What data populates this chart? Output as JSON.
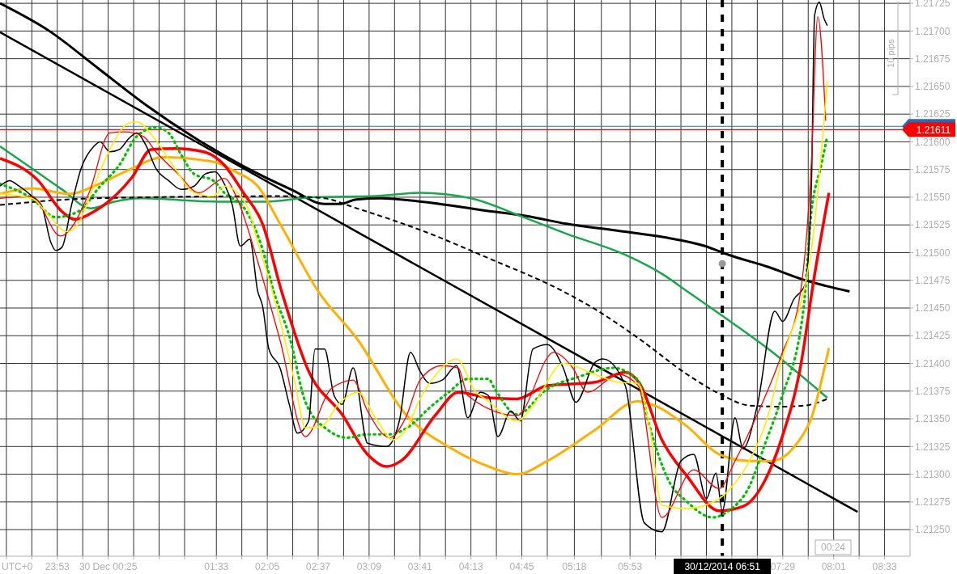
{
  "chart_data": {
    "type": "line",
    "xlim": [
      "2014-12-29T23:17",
      "2014-12-30T08:49"
    ],
    "ylim": [
      1.21226,
      1.21728
    ],
    "xticks": [
      {
        "value": "2014-12-29T23:21",
        "label": null
      },
      {
        "value": "2014-12-29T23:37",
        "label": null
      },
      {
        "value": "2014-12-29T23:53",
        "label": "23:53"
      },
      {
        "value": "2014-12-30T00:09",
        "label": null
      },
      {
        "value": "2014-12-30T00:25",
        "label": "30 Dec 00:25"
      },
      {
        "value": "2014-12-30T00:41",
        "label": null
      },
      {
        "value": "2014-12-30T00:57",
        "label": null
      },
      {
        "value": "2014-12-30T01:13",
        "label": null
      },
      {
        "value": "2014-12-30T01:33",
        "label": "01:33"
      },
      {
        "value": "2014-12-30T01:49",
        "label": null
      },
      {
        "value": "2014-12-30T02:05",
        "label": "02:05"
      },
      {
        "value": "2014-12-30T02:21",
        "label": null
      },
      {
        "value": "2014-12-30T02:37",
        "label": "02:37"
      },
      {
        "value": "2014-12-30T02:53",
        "label": null
      },
      {
        "value": "2014-12-30T03:09",
        "label": "03:09"
      },
      {
        "value": "2014-12-30T03:25",
        "label": null
      },
      {
        "value": "2014-12-30T03:41",
        "label": "03:41"
      },
      {
        "value": "2014-12-30T03:57",
        "label": null
      },
      {
        "value": "2014-12-30T04:13",
        "label": "04:13"
      },
      {
        "value": "2014-12-30T04:29",
        "label": null
      },
      {
        "value": "2014-12-30T04:45",
        "label": "04:45"
      },
      {
        "value": "2014-12-30T05:01",
        "label": null
      },
      {
        "value": "2014-12-30T05:18",
        "label": "05:18"
      },
      {
        "value": "2014-12-30T05:35",
        "label": null
      },
      {
        "value": "2014-12-30T05:53",
        "label": "05:53"
      },
      {
        "value": "2014-12-30T06:09",
        "label": null
      },
      {
        "value": "2014-12-30T06:25",
        "label": null
      },
      {
        "value": "2014-12-30T06:41",
        "label": null
      },
      {
        "value": "2014-12-30T06:57",
        "label": null
      },
      {
        "value": "2014-12-30T07:13",
        "label": null
      },
      {
        "value": "2014-12-30T07:29",
        "label": "07:29"
      },
      {
        "value": "2014-12-30T07:45",
        "label": null
      },
      {
        "value": "2014-12-30T08:01",
        "label": "08:01"
      },
      {
        "value": "2014-12-30T08:17",
        "label": null
      },
      {
        "value": "2014-12-30T08:33",
        "label": "08:33"
      }
    ],
    "yticks": [
      {
        "value": 1.2125,
        "label": "1.21250"
      },
      {
        "value": 1.21275,
        "label": "1.21275"
      },
      {
        "value": 1.213,
        "label": "1.21300"
      },
      {
        "value": 1.21325,
        "label": "1.21325"
      },
      {
        "value": 1.2135,
        "label": "1.21350"
      },
      {
        "value": 1.21375,
        "label": "1.21375"
      },
      {
        "value": 1.214,
        "label": "1.21400"
      },
      {
        "value": 1.21425,
        "label": "1.21425"
      },
      {
        "value": 1.2145,
        "label": "1.21450"
      },
      {
        "value": 1.21475,
        "label": "1.21475"
      },
      {
        "value": 1.215,
        "label": "1.21500"
      },
      {
        "value": 1.21525,
        "label": "1.21525"
      },
      {
        "value": 1.2155,
        "label": "1.21550"
      },
      {
        "value": 1.21575,
        "label": "1.21575"
      },
      {
        "value": 1.216,
        "label": "1.21600"
      },
      {
        "value": 1.21625,
        "label": "1.21625"
      },
      {
        "value": 1.2165,
        "label": "1.21650"
      },
      {
        "value": 1.21675,
        "label": "1.21675"
      },
      {
        "value": 1.217,
        "label": "1.21700"
      },
      {
        "value": 1.21725,
        "label": "1.21725"
      }
    ],
    "grid": true,
    "series": [
      {
        "color": "#000000",
        "x": [
          "2014-12-29T23:17",
          "2014-12-30T08:16"
        ],
        "values": [
          1.21699,
          1.21266
        ]
      },
      {
        "color": "#000000",
        "x": [
          "2014-12-29T23:17",
          "2014-12-29T23:48",
          "2014-12-30T00:19",
          "2014-12-30T00:49",
          "2014-12-30T01:19",
          "2014-12-30T01:50",
          "2014-12-30T02:20",
          "2014-12-30T02:41",
          "2014-12-30T02:51",
          "2014-12-30T03:01",
          "2014-12-30T03:16",
          "2014-12-30T03:42",
          "2014-12-30T04:22",
          "2014-12-30T04:48",
          "2014-12-30T05:13",
          "2014-12-30T05:44",
          "2014-12-30T06:14",
          "2014-12-30T06:40",
          "2014-12-30T06:55",
          "2014-12-30T07:20",
          "2014-12-30T07:41",
          "2014-12-30T07:56",
          "2014-12-30T08:11"
        ],
        "values": [
          1.21725,
          1.217,
          1.21666,
          1.21633,
          1.21604,
          1.21578,
          1.21557,
          1.21544,
          1.21544,
          1.21548,
          1.21549,
          1.21546,
          1.21538,
          1.21533,
          1.21526,
          1.2152,
          1.21514,
          1.21506,
          1.21498,
          1.21487,
          1.21476,
          1.2147,
          1.21465
        ]
      },
      {
        "color": "#18a84a",
        "x": [
          "2014-12-29T23:17",
          "2014-12-29T23:37",
          "2014-12-29T23:56",
          "2014-12-30T00:14",
          "2014-12-30T00:29",
          "2014-12-30T00:46",
          "2014-12-30T01:34",
          "2014-12-30T02:04",
          "2014-12-30T02:33",
          "2014-12-30T03:13",
          "2014-12-30T03:41",
          "2014-12-30T04:13",
          "2014-12-30T04:46",
          "2014-12-30T05:13",
          "2014-12-30T05:50",
          "2014-12-30T06:14",
          "2014-12-30T06:29",
          "2014-12-30T06:50",
          "2014-12-30T07:20",
          "2014-12-30T07:57"
        ],
        "values": [
          1.21596,
          1.21576,
          1.21557,
          1.2154,
          1.21546,
          1.21549,
          1.21546,
          1.21546,
          1.2155,
          1.21551,
          1.21554,
          1.21549,
          1.21532,
          1.21517,
          1.21498,
          1.2148,
          1.21465,
          1.21444,
          1.21413,
          1.21369
        ]
      },
      {
        "color": "#000000",
        "line_style": "dashed",
        "x": [
          "2014-12-29T23:17",
          "2014-12-30T00:16",
          "2014-12-30T02:13",
          "2014-12-30T02:41",
          "2014-12-30T02:59",
          "2014-12-30T03:42",
          "2014-12-30T04:24",
          "2014-12-30T05:11",
          "2014-12-30T05:31",
          "2014-12-30T05:59",
          "2014-12-30T06:29",
          "2014-12-30T06:50",
          "2014-12-30T07:08",
          "2014-12-30T07:28",
          "2014-12-30T07:43",
          "2014-12-30T07:57"
        ],
        "values": [
          1.21543,
          1.21549,
          1.21551,
          1.21549,
          1.21541,
          1.2152,
          1.21495,
          1.21465,
          1.21449,
          1.21422,
          1.2139,
          1.21372,
          1.21362,
          1.21361,
          1.21362,
          1.21368
        ]
      },
      {
        "color": "#ffb000",
        "x": [
          "2014-12-29T23:17",
          "2014-12-29T23:37",
          "2014-12-30T00:01",
          "2014-12-30T00:16",
          "2014-12-30T00:40",
          "2014-12-30T00:59",
          "2014-12-30T01:31",
          "2014-12-30T01:45",
          "2014-12-30T01:59",
          "2014-12-30T02:13",
          "2014-12-30T02:37",
          "2014-12-30T03:02",
          "2014-12-30T03:32",
          "2014-12-30T04:01",
          "2014-12-30T04:24",
          "2014-12-30T04:42",
          "2014-12-30T05:01",
          "2014-12-30T05:31",
          "2014-12-30T05:58",
          "2014-12-30T06:10",
          "2014-12-30T06:29",
          "2014-12-30T06:49",
          "2014-12-30T07:08",
          "2014-12-30T07:22",
          "2014-12-30T07:38",
          "2014-12-30T07:47",
          "2014-12-30T07:58"
        ],
        "values": [
          1.21553,
          1.21558,
          1.21553,
          1.2156,
          1.21576,
          1.21586,
          1.21582,
          1.21573,
          1.2156,
          1.21526,
          1.21465,
          1.21421,
          1.21354,
          1.21323,
          1.21307,
          1.213,
          1.21312,
          1.2134,
          1.21366,
          1.21361,
          1.21343,
          1.21318,
          1.21312,
          1.21312,
          1.21328,
          1.21351,
          1.21414
        ]
      },
      {
        "color": "#ff0000",
        "x": [
          "2014-12-29T23:17",
          "2014-12-29T23:41",
          "2014-12-29T23:56",
          "2014-12-30T00:04",
          "2014-12-30T00:16",
          "2014-12-30T00:40",
          "2014-12-30T00:52",
          "2014-12-30T01:07",
          "2014-12-30T01:25",
          "2014-12-30T01:38",
          "2014-12-30T01:50",
          "2014-12-30T02:02",
          "2014-12-30T02:14",
          "2014-12-30T02:31",
          "2014-12-30T02:52",
          "2014-12-30T03:08",
          "2014-12-30T03:20",
          "2014-12-30T03:29",
          "2014-12-30T03:51",
          "2014-12-30T04:05",
          "2014-12-30T04:24",
          "2014-12-30T04:42",
          "2014-12-30T05:01",
          "2014-12-30T05:31",
          "2014-12-30T05:50",
          "2014-12-30T05:59",
          "2014-12-30T06:13",
          "2014-12-30T06:29",
          "2014-12-30T06:49",
          "2014-12-30T07:04",
          "2014-12-30T07:18",
          "2014-12-30T07:28",
          "2014-12-30T07:40",
          "2014-12-30T07:49",
          "2014-12-30T07:58"
        ],
        "values": [
          1.21585,
          1.21565,
          1.21537,
          1.2153,
          1.21537,
          1.21568,
          1.21593,
          1.21594,
          1.21591,
          1.21579,
          1.21554,
          1.21526,
          1.21465,
          1.21393,
          1.21354,
          1.21318,
          1.21307,
          1.21312,
          1.21354,
          1.21374,
          1.21369,
          1.21368,
          1.2138,
          1.21383,
          1.21392,
          1.21382,
          1.21331,
          1.21298,
          1.21267,
          1.21271,
          1.21295,
          1.21331,
          1.21396,
          1.2148,
          1.21554
        ]
      },
      {
        "color": "#00c000",
        "line_style": "dotted",
        "x": [
          "2014-12-29T23:17",
          "2014-12-29T23:37",
          "2014-12-29T23:52",
          "2014-12-30T00:06",
          "2014-12-30T00:20",
          "2014-12-30T00:32",
          "2014-12-30T00:43",
          "2014-12-30T00:55",
          "2014-12-30T01:03",
          "2014-12-30T01:11",
          "2014-12-30T01:19",
          "2014-12-30T01:31",
          "2014-12-30T01:38",
          "2014-12-30T01:52",
          "2014-12-30T02:02",
          "2014-12-30T02:09",
          "2014-12-30T02:19",
          "2014-12-30T02:29",
          "2014-12-30T02:43",
          "2014-12-30T02:55",
          "2014-12-30T03:08",
          "2014-12-30T03:22",
          "2014-12-30T03:34",
          "2014-12-30T03:47",
          "2014-12-30T03:59",
          "2014-12-30T04:11",
          "2014-12-30T04:24",
          "2014-12-30T04:28",
          "2014-12-30T04:42",
          "2014-12-30T05:01",
          "2014-12-30T05:21",
          "2014-12-30T05:42",
          "2014-12-30T05:58",
          "2014-12-30T06:05",
          "2014-12-30T06:17",
          "2014-12-30T06:29",
          "2014-12-30T06:45",
          "2014-12-30T06:55",
          "2014-12-30T07:08",
          "2014-12-30T07:18",
          "2014-12-30T07:28",
          "2014-12-30T07:42",
          "2014-12-30T07:47",
          "2014-12-30T07:53",
          "2014-12-30T07:57"
        ],
        "values": [
          1.21562,
          1.21549,
          1.21532,
          1.21537,
          1.2156,
          1.21579,
          1.21605,
          1.21613,
          1.21608,
          1.21588,
          1.21571,
          1.21565,
          1.21554,
          1.21537,
          1.21503,
          1.21465,
          1.21424,
          1.21365,
          1.2134,
          1.21333,
          1.21336,
          1.21336,
          1.21343,
          1.2136,
          1.21374,
          1.21386,
          1.21386,
          1.21377,
          1.21354,
          1.21377,
          1.21388,
          1.21396,
          1.21385,
          1.21345,
          1.21295,
          1.21275,
          1.21261,
          1.21267,
          1.21289,
          1.21328,
          1.21368,
          1.21449,
          1.21537,
          1.21578,
          1.21605
        ]
      },
      {
        "color": "#000000",
        "x": [
          "2014-12-29T23:17",
          "2014-12-29T23:23",
          "2014-12-29T23:29",
          "2014-12-29T23:37",
          "2014-12-29T23:43",
          "2014-12-29T23:49",
          "2014-12-29T23:52",
          "2014-12-29T23:56",
          "2014-12-30T00:02",
          "2014-12-30T00:08",
          "2014-12-30T00:16",
          "2014-12-30T00:20",
          "2014-12-30T00:26",
          "2014-12-30T00:32",
          "2014-12-30T00:38",
          "2014-12-30T00:43",
          "2014-12-30T00:49",
          "2014-12-30T00:55",
          "2014-12-30T01:03",
          "2014-12-30T01:11",
          "2014-12-30T01:19",
          "2014-12-30T01:26",
          "2014-12-30T01:32",
          "2014-12-30T01:38",
          "2014-12-30T01:43",
          "2014-12-30T01:48",
          "2014-12-30T01:54",
          "2014-12-30T01:59",
          "2014-12-30T02:02",
          "2014-12-30T02:06",
          "2014-12-30T02:13",
          "2014-12-30T02:19",
          "2014-12-30T02:24",
          "2014-12-30T02:31",
          "2014-12-30T02:35",
          "2014-12-30T02:41",
          "2014-12-30T02:47",
          "2014-12-30T02:52",
          "2014-12-30T02:59",
          "2014-12-30T03:08",
          "2014-12-30T03:20",
          "2014-12-30T03:28",
          "2014-12-30T03:35",
          "2014-12-30T03:41",
          "2014-12-30T03:47",
          "2014-12-30T03:55",
          "2014-12-30T04:04",
          "2014-12-30T04:11",
          "2014-12-30T04:19",
          "2014-12-30T04:24",
          "2014-12-30T04:30",
          "2014-12-30T04:38",
          "2014-12-30T04:44",
          "2014-12-30T04:52",
          "2014-12-30T05:01",
          "2014-12-30T05:11",
          "2014-12-30T05:19",
          "2014-12-30T05:31",
          "2014-12-30T05:36",
          "2014-12-30T05:50",
          "2014-12-30T06:02",
          "2014-12-30T06:13",
          "2014-12-30T06:25",
          "2014-12-30T06:33",
          "2014-12-30T06:41",
          "2014-12-30T06:47",
          "2014-12-30T06:51",
          "2014-12-30T06:59",
          "2014-12-30T07:04",
          "2014-12-30T07:13",
          "2014-12-30T07:24",
          "2014-12-30T07:29",
          "2014-12-30T07:36",
          "2014-12-30T07:43",
          "2014-12-30T07:47",
          "2014-12-30T07:49",
          "2014-12-30T07:52",
          "2014-12-30T07:55",
          "2014-12-30T07:57"
        ],
        "values": [
          1.2156,
          1.21565,
          1.2156,
          1.21551,
          1.21543,
          1.21509,
          1.21502,
          1.21505,
          1.21543,
          1.21576,
          1.21596,
          1.216,
          1.21591,
          1.21593,
          1.21603,
          1.21608,
          1.21596,
          1.21576,
          1.21565,
          1.21557,
          1.2156,
          1.21571,
          1.21573,
          1.21562,
          1.21543,
          1.21506,
          1.21512,
          1.21465,
          1.21452,
          1.21413,
          1.21396,
          1.21362,
          1.21337,
          1.21348,
          1.21413,
          1.21413,
          1.21371,
          1.21363,
          1.21396,
          1.21328,
          1.21325,
          1.21348,
          1.2141,
          1.21393,
          1.21382,
          1.21385,
          1.21398,
          1.21351,
          1.21374,
          1.21371,
          1.21334,
          1.21357,
          1.21348,
          1.21413,
          1.21417,
          1.21396,
          1.21365,
          1.21401,
          1.21404,
          1.2138,
          1.21256,
          1.21248,
          1.21312,
          1.21318,
          1.21278,
          1.21301,
          1.21267,
          1.21351,
          1.21323,
          1.21362,
          1.21447,
          1.21438,
          1.21458,
          1.21471,
          1.2156,
          1.21714,
          1.21726,
          1.21711,
          1.21705
        ]
      },
      {
        "color": "#ff0000",
        "x": [
          "2014-12-29T23:17",
          "2014-12-29T23:37",
          "2014-12-29T23:55",
          "2014-12-30T00:13",
          "2014-12-30T00:26",
          "2014-12-30T00:35",
          "2014-12-30T00:47",
          "2014-12-30T00:55",
          "2014-12-30T01:09",
          "2014-12-30T01:22",
          "2014-12-30T01:38",
          "2014-12-30T01:46",
          "2014-12-30T01:59",
          "2014-12-30T02:13",
          "2014-12-30T02:29",
          "2014-12-30T02:45",
          "2014-12-30T02:59",
          "2014-12-30T03:08",
          "2014-12-30T03:22",
          "2014-12-30T03:32",
          "2014-12-30T03:41",
          "2014-12-30T03:55",
          "2014-12-30T04:05",
          "2014-12-30T04:11",
          "2014-12-30T04:42",
          "2014-12-30T05:05",
          "2014-12-30T05:17",
          "2014-12-30T05:26",
          "2014-12-30T05:46",
          "2014-12-30T05:58",
          "2014-12-30T06:13",
          "2014-12-30T06:33",
          "2014-12-30T06:49",
          "2014-12-30T06:59",
          "2014-12-30T07:13",
          "2014-12-30T07:28",
          "2014-12-30T07:40",
          "2014-12-30T07:47",
          "2014-12-30T07:51",
          "2014-12-30T07:56"
        ],
        "values": [
          1.21549,
          1.21551,
          1.21515,
          1.21554,
          1.21608,
          1.21609,
          1.21605,
          1.21591,
          1.21571,
          1.21554,
          1.21567,
          1.21549,
          1.21492,
          1.21421,
          1.21334,
          1.21377,
          1.21385,
          1.21357,
          1.21333,
          1.21351,
          1.21385,
          1.21398,
          1.21396,
          1.21371,
          1.21353,
          1.2141,
          1.21396,
          1.21374,
          1.2139,
          1.2138,
          1.21261,
          1.21304,
          1.21287,
          1.21312,
          1.21354,
          1.21407,
          1.21463,
          1.21582,
          1.21713,
          1.21619
        ]
      },
      {
        "color": "#ffee00",
        "x": [
          "2014-12-29T23:17",
          "2014-12-29T23:37",
          "2014-12-29T23:47",
          "2014-12-29T23:59",
          "2014-12-30T00:06",
          "2014-12-30T00:16",
          "2014-12-30T00:26",
          "2014-12-30T00:38",
          "2014-12-30T00:43",
          "2014-12-30T00:53",
          "2014-12-30T01:07",
          "2014-12-30T01:19",
          "2014-12-30T01:31",
          "2014-12-30T01:38",
          "2014-12-30T01:52",
          "2014-12-30T01:59",
          "2014-12-30T02:08",
          "2014-12-30T02:22",
          "2014-12-30T02:29",
          "2014-12-30T02:39",
          "2014-12-30T02:49",
          "2014-12-30T03:02",
          "2014-12-30T03:13",
          "2014-12-30T03:24",
          "2014-12-30T03:32",
          "2014-12-30T03:41",
          "2014-12-30T03:51",
          "2014-12-30T04:04",
          "2014-12-30T04:16",
          "2014-12-30T04:22",
          "2014-12-30T04:42",
          "2014-12-30T04:52",
          "2014-12-30T05:11",
          "2014-12-30T05:31",
          "2014-12-30T05:46",
          "2014-12-30T05:58",
          "2014-12-30T06:05",
          "2014-12-30T06:13",
          "2014-12-30T06:29",
          "2014-12-30T06:49",
          "2014-12-30T06:56",
          "2014-12-30T07:08",
          "2014-12-30T07:20",
          "2014-12-30T07:28",
          "2014-12-30T07:43",
          "2014-12-30T07:47",
          "2014-12-30T07:57"
        ],
        "values": [
          1.21553,
          1.21549,
          1.21535,
          1.21519,
          1.21526,
          1.2156,
          1.21593,
          1.21617,
          1.21618,
          1.21605,
          1.21576,
          1.21554,
          1.21551,
          1.2156,
          1.21543,
          1.21509,
          1.21466,
          1.21385,
          1.21342,
          1.21343,
          1.21362,
          1.21374,
          1.21351,
          1.21331,
          1.2134,
          1.21368,
          1.2139,
          1.21404,
          1.21374,
          1.21368,
          1.21348,
          1.21362,
          1.214,
          1.2139,
          1.21383,
          1.21382,
          1.21345,
          1.21272,
          1.21269,
          1.21278,
          1.21287,
          1.21312,
          1.21354,
          1.21401,
          1.21471,
          1.21503,
          1.21655
        ]
      },
      {
        "type": "scatter",
        "marker": "circle",
        "color": "#999999",
        "x": [
          "2014-12-30T06:51"
        ],
        "values": [
          1.2149
        ]
      }
    ],
    "ref_lines": [
      {
        "axis": "x",
        "value": "2014-12-30T06:51",
        "label": "30/12/2014 06:51",
        "color": "#000000",
        "line_style": "dashed"
      },
      {
        "axis": "y",
        "value": 1.21614,
        "color": "#1e6fc0"
      },
      {
        "axis": "y",
        "value": 1.21611,
        "label": "1.21611",
        "color": "#ff0000"
      }
    ],
    "annotations": [
      "UTC+0",
      "10 pips",
      "00:24"
    ]
  }
}
